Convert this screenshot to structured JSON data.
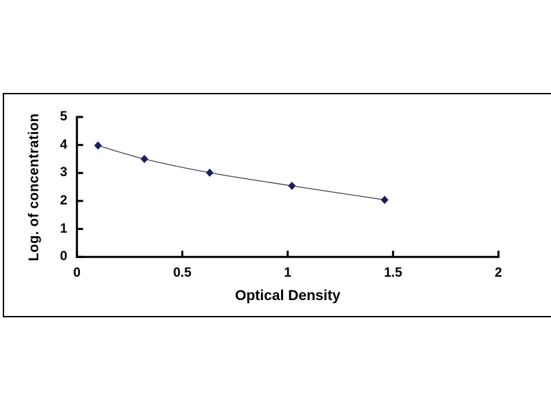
{
  "figure": {
    "background": "#ffffff",
    "frame_border_color": "#000000"
  },
  "chart_data": {
    "type": "line",
    "title": "",
    "xlabel": "Optical Density",
    "ylabel": "Log. of concentration",
    "xlim": [
      0,
      2.01
    ],
    "ylim": [
      0,
      5
    ],
    "grid": false,
    "legend": null,
    "marker_shape": "diamond",
    "points": [
      {
        "x": 0.1,
        "y": 3.98
      },
      {
        "x": 0.32,
        "y": 3.5
      },
      {
        "x": 0.63,
        "y": 3.01
      },
      {
        "x": 1.02,
        "y": 2.54
      },
      {
        "x": 1.46,
        "y": 2.04
      }
    ],
    "x_ticks": {
      "values": [
        0,
        0.5,
        1,
        1.5,
        2
      ],
      "labels": [
        "0",
        "0.5",
        "1",
        "1.5",
        "2"
      ]
    },
    "y_ticks": {
      "values": [
        0,
        1,
        2,
        3,
        4,
        5
      ],
      "labels": [
        "0",
        "1",
        "2",
        "3",
        "4",
        "5"
      ]
    },
    "colors": {
      "marker": "#1c1c5e",
      "line": "#45454f",
      "axis": "#000000",
      "text": "#000000"
    }
  }
}
